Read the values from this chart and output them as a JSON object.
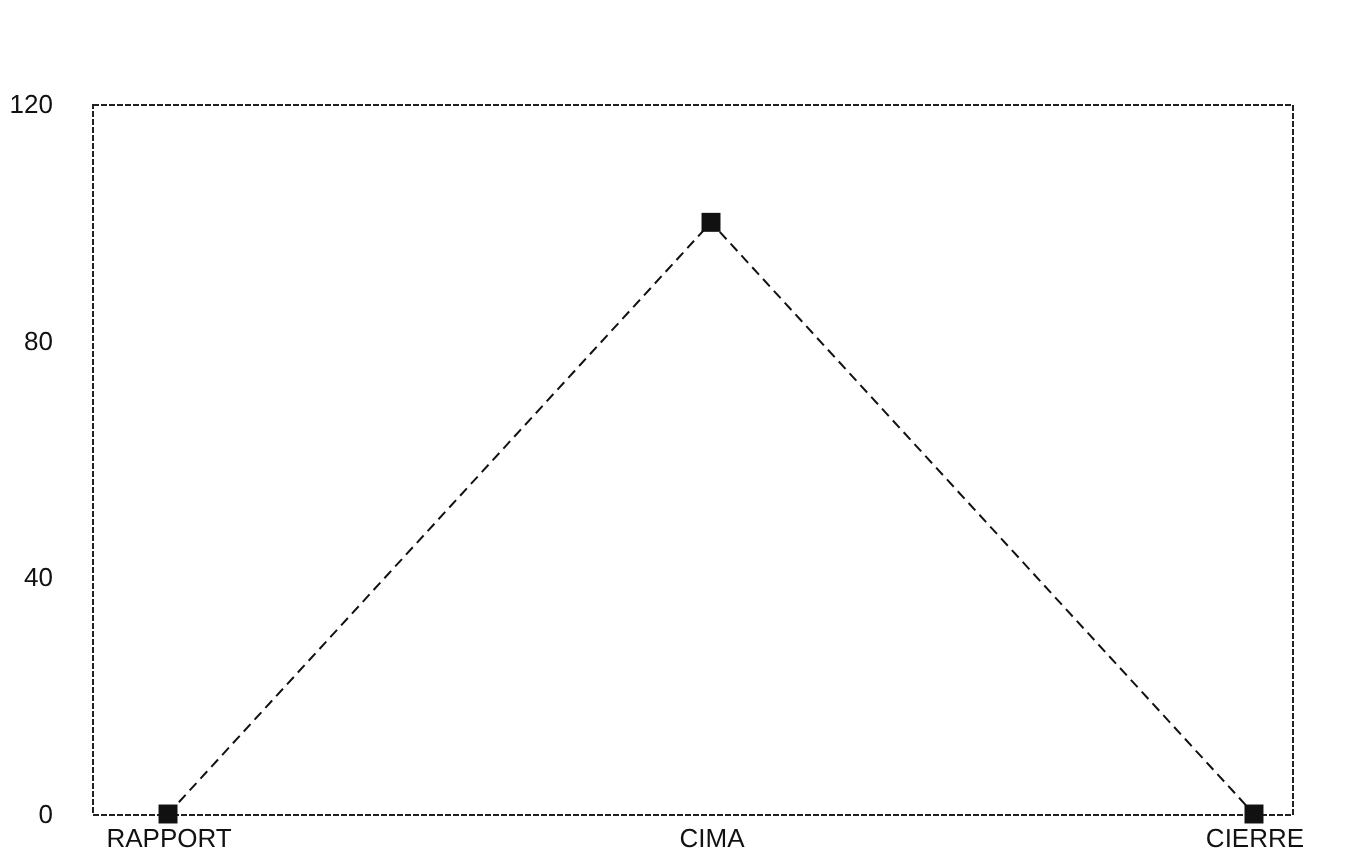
{
  "chart_data": {
    "type": "line",
    "categories": [
      "RAPPORT",
      "CIMA",
      "CIERRE"
    ],
    "series": [
      {
        "color": "#111111",
        "values": [
          0,
          100,
          0
        ]
      }
    ],
    "ylim": [
      0,
      120
    ],
    "yticks": [
      0,
      40,
      80,
      120
    ],
    "grid": false,
    "legend": false,
    "marker": "square",
    "line_style": "dashed"
  }
}
